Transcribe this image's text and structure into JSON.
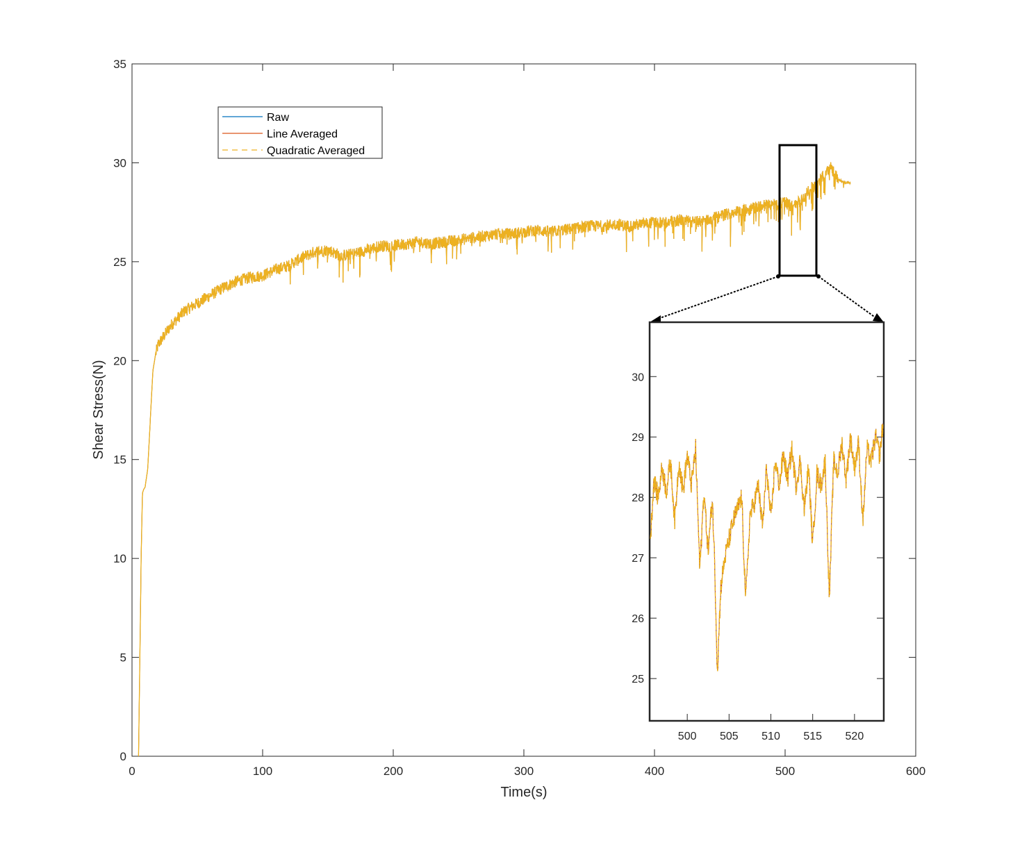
{
  "chart_data": [
    {
      "type": "line",
      "title": "",
      "xlabel": "Time(s)",
      "ylabel": "Shear Stress(N)",
      "xlim": [
        0,
        600
      ],
      "ylim": [
        0,
        35
      ],
      "xticks": [
        0,
        100,
        200,
        300,
        400,
        500,
        600
      ],
      "yticks": [
        0,
        5,
        10,
        15,
        20,
        25,
        30,
        35
      ],
      "grid": false,
      "legend_position": "top-left",
      "series": [
        {
          "name": "Raw",
          "color": "#0072BD",
          "style": "solid"
        },
        {
          "name": "Line Averaged",
          "color": "#D95319",
          "style": "solid"
        },
        {
          "name": "Quadratic Averaged",
          "color": "#EDB120",
          "style": "dashed"
        }
      ],
      "x": [
        5,
        6,
        7,
        8,
        9,
        10,
        12,
        14,
        16,
        18,
        20,
        25,
        30,
        40,
        50,
        60,
        70,
        80,
        90,
        100,
        110,
        120,
        130,
        140,
        150,
        160,
        170,
        180,
        190,
        200,
        210,
        220,
        230,
        240,
        250,
        260,
        270,
        280,
        290,
        300,
        310,
        320,
        330,
        340,
        350,
        360,
        370,
        380,
        390,
        400,
        410,
        420,
        430,
        440,
        450,
        460,
        470,
        480,
        490,
        500,
        505,
        510,
        515,
        520,
        525,
        530,
        535,
        540,
        545,
        550
      ],
      "y": [
        0,
        5,
        10,
        13.3,
        13.5,
        13.6,
        14.5,
        17,
        19.5,
        20.3,
        20.8,
        21.3,
        21.8,
        22.5,
        22.9,
        23.3,
        23.7,
        24.0,
        24.2,
        24.3,
        24.6,
        24.8,
        25.2,
        25.5,
        25.6,
        25.3,
        25.4,
        25.6,
        25.8,
        25.8,
        25.9,
        26.0,
        25.9,
        26.0,
        26.1,
        26.2,
        26.3,
        26.4,
        26.4,
        26.5,
        26.6,
        26.5,
        26.6,
        26.7,
        26.8,
        26.8,
        26.9,
        26.8,
        26.9,
        27.0,
        27.0,
        27.1,
        27.0,
        27.1,
        27.3,
        27.5,
        27.6,
        27.8,
        27.9,
        28.0,
        27.8,
        28.0,
        28.3,
        28.7,
        29.0,
        29.4,
        29.8,
        29.2,
        29.0,
        29.0
      ]
    },
    {
      "type": "line",
      "title": "",
      "xlabel": "",
      "ylabel": "",
      "xlim": [
        495.5,
        523.5
      ],
      "ylim": [
        24.3,
        30.9
      ],
      "xticks": [
        500,
        505,
        510,
        515,
        520
      ],
      "yticks": [
        25,
        26,
        27,
        28,
        29,
        30
      ],
      "x": [
        495.6,
        496.0,
        496.5,
        497.0,
        497.5,
        498.0,
        498.5,
        499.0,
        499.5,
        500.0,
        500.5,
        501.0,
        501.5,
        502.0,
        502.5,
        503.0,
        503.3,
        503.6,
        504.0,
        504.5,
        505.0,
        505.5,
        506.0,
        506.5,
        507.0,
        507.5,
        508.0,
        508.5,
        509.0,
        509.5,
        510.0,
        510.5,
        511.0,
        511.5,
        512.0,
        512.5,
        513.0,
        513.5,
        514.0,
        514.5,
        515.0,
        515.5,
        516.0,
        516.5,
        517.0,
        517.5,
        518.0,
        518.5,
        519.0,
        519.5,
        520.0,
        520.5,
        521.0,
        521.5,
        522.0,
        522.5,
        523.0,
        523.4
      ],
      "y": [
        27.3,
        28.3,
        28.0,
        28.5,
        28.1,
        28.6,
        27.6,
        28.6,
        28.1,
        28.7,
        28.2,
        28.8,
        26.8,
        28.1,
        27.1,
        28.0,
        26.8,
        25.1,
        26.5,
        27.0,
        27.3,
        27.6,
        27.8,
        28.0,
        26.3,
        27.7,
        27.9,
        28.2,
        27.5,
        28.5,
        27.6,
        28.6,
        28.2,
        28.7,
        28.3,
        28.8,
        28.2,
        28.6,
        27.8,
        28.5,
        27.2,
        28.4,
        28.2,
        28.6,
        26.3,
        28.6,
        28.4,
        28.9,
        28.3,
        29.0,
        28.5,
        28.9,
        27.6,
        28.8,
        28.6,
        29.0,
        28.7,
        29.2
      ]
    }
  ]
}
